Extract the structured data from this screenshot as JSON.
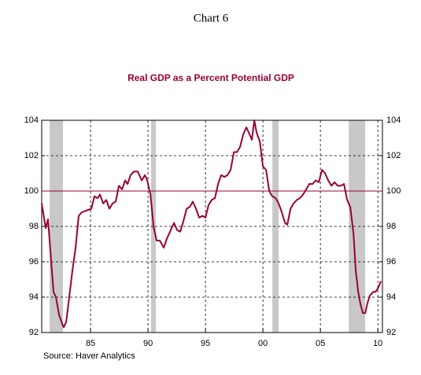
{
  "chart_data": {
    "type": "line",
    "page_title": "Chart 6",
    "title": "Real GDP as a Percent Potential GDP",
    "source": "Source: Haver Analytics",
    "color": "#990033",
    "reference_line": 100,
    "reference_color": "#990033",
    "shade_color": "#c8c8c8",
    "shaded_ranges": [
      [
        1981.44,
        1982.6
      ],
      [
        1990.27,
        1990.68
      ],
      [
        2000.82,
        2001.37
      ],
      [
        2007.47,
        2008.9
      ]
    ],
    "grid": true,
    "xlim": [
      1980.75,
      2010.4
    ],
    "xticks": [
      {
        "value": 1985,
        "label": "85"
      },
      {
        "value": 1990,
        "label": "90"
      },
      {
        "value": 1995,
        "label": "95"
      },
      {
        "value": 2000,
        "label": "00"
      },
      {
        "value": 2005,
        "label": "05"
      },
      {
        "value": 2010,
        "label": "10"
      }
    ],
    "ylim": [
      92,
      104
    ],
    "yticks": [
      92,
      94,
      96,
      98,
      100,
      102,
      104
    ],
    "y2lim": [
      92,
      104
    ],
    "y2ticks": [
      92,
      94,
      96,
      98,
      100,
      102,
      104
    ],
    "x": [
      1980.75,
      1981.1,
      1981.3,
      1981.58,
      1981.78,
      1981.99,
      1982.26,
      1982.53,
      1982.67,
      1982.88,
      1983.15,
      1983.42,
      1983.7,
      1983.97,
      1984.25,
      1984.66,
      1985.07,
      1985.34,
      1985.62,
      1985.82,
      1986.1,
      1986.37,
      1986.64,
      1986.92,
      1987.19,
      1987.47,
      1987.74,
      1988.01,
      1988.22,
      1988.49,
      1988.77,
      1989.11,
      1989.45,
      1989.73,
      1989.93,
      1990.21,
      1990.48,
      1990.75,
      1991.03,
      1991.37,
      1991.64,
      1991.92,
      1992.26,
      1992.53,
      1992.81,
      1993.08,
      1993.36,
      1993.63,
      1993.9,
      1994.18,
      1994.45,
      1994.73,
      1995.0,
      1995.27,
      1995.55,
      1995.82,
      1996.1,
      1996.37,
      1996.64,
      1996.92,
      1997.19,
      1997.47,
      1997.74,
      1998.01,
      1998.29,
      1998.56,
      1998.84,
      1999.04,
      1999.25,
      1999.45,
      1999.73,
      2000.0,
      2000.27,
      2000.55,
      2000.82,
      2001.1,
      2001.37,
      2001.64,
      2001.92,
      2002.12,
      2002.4,
      2002.67,
      2002.95,
      2003.22,
      2003.49,
      2003.77,
      2004.04,
      2004.32,
      2004.59,
      2004.86,
      2005.14,
      2005.41,
      2005.68,
      2005.96,
      2006.23,
      2006.51,
      2006.78,
      2007.05,
      2007.33,
      2007.6,
      2007.88,
      2008.08,
      2008.29,
      2008.49,
      2008.7,
      2008.9,
      2009.11,
      2009.32,
      2009.59,
      2009.79,
      2010.0,
      2010.27
    ],
    "values": [
      99.3,
      97.9,
      98.4,
      96,
      94.3,
      94,
      93,
      92.5,
      92.3,
      92.6,
      94,
      95.5,
      96.8,
      98.6,
      98.8,
      98.9,
      99,
      99.7,
      99.6,
      99.8,
      99.3,
      99.5,
      99,
      99.3,
      99.4,
      100.3,
      100.1,
      100.6,
      100.4,
      100.9,
      101.1,
      101.1,
      100.6,
      100.9,
      100.6,
      99.8,
      98,
      97.2,
      97.2,
      96.8,
      97.3,
      97.7,
      98.2,
      97.8,
      97.7,
      98.3,
      99,
      99.1,
      99.4,
      99,
      98.5,
      98.6,
      98.5,
      99.2,
      99.5,
      99.6,
      100.4,
      100.9,
      100.8,
      100.9,
      101.2,
      102.2,
      102.2,
      102.5,
      103.2,
      103.6,
      103.2,
      102.9,
      104,
      103.3,
      102.8,
      101.4,
      101.2,
      100,
      99.7,
      99.6,
      99.3,
      98.8,
      98.2,
      98.1,
      99,
      99.3,
      99.5,
      99.6,
      99.8,
      100.1,
      100.4,
      100.4,
      100.6,
      100.5,
      101.2,
      101,
      100.6,
      100.3,
      100.5,
      100.3,
      100.3,
      100.4,
      99.5,
      99.1,
      97.6,
      95.5,
      94.3,
      93.6,
      93.1,
      93.1,
      93.7,
      94.1,
      94.3,
      94.3,
      94.5,
      94.9
    ]
  }
}
